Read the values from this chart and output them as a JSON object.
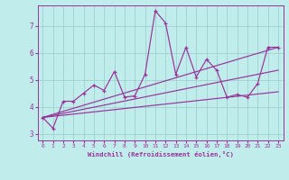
{
  "xlabel": "Windchill (Refroidissement éolien,°C)",
  "bg_color": "#c0ecec",
  "line_color": "#993399",
  "xlim": [
    -0.5,
    23.5
  ],
  "ylim": [
    2.75,
    7.75
  ],
  "xticks": [
    0,
    1,
    2,
    3,
    4,
    5,
    6,
    7,
    8,
    9,
    10,
    11,
    12,
    13,
    14,
    15,
    16,
    17,
    18,
    19,
    20,
    21,
    22,
    23
  ],
  "yticks": [
    3,
    4,
    5,
    6,
    7
  ],
  "grid_color": "#99cccc",
  "jagged": [
    3.6,
    3.2,
    4.2,
    4.2,
    4.5,
    4.8,
    4.6,
    5.3,
    4.35,
    4.4,
    5.2,
    7.55,
    7.1,
    5.2,
    6.2,
    5.1,
    5.75,
    5.35,
    4.35,
    4.45,
    4.35,
    4.85,
    6.2,
    6.2
  ],
  "trend1_x": [
    0,
    23
  ],
  "trend1_y": [
    3.6,
    6.2
  ],
  "trend2_x": [
    0,
    23
  ],
  "trend2_y": [
    3.6,
    5.35
  ],
  "trend3_x": [
    0,
    23
  ],
  "trend3_y": [
    3.6,
    4.55
  ]
}
